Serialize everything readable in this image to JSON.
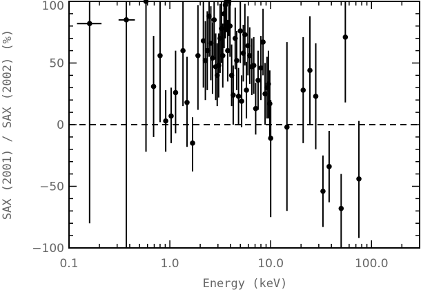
{
  "chart_data": {
    "type": "scatter",
    "title": "",
    "xlabel": "Energy (keV)",
    "ylabel": "SAX (2001) / SAX (2002) (%)",
    "x_scale": "log",
    "xlim": [
      0.1,
      300
    ],
    "ylim": [
      -100,
      100
    ],
    "x_ticks": [
      "0.1",
      "1.0",
      "10.0",
      "100.0"
    ],
    "y_ticks": [
      "−100",
      "−50",
      "0",
      "50",
      "100"
    ],
    "reference_line": {
      "y": 0,
      "style": "dashed"
    },
    "grid": false,
    "legend": "none",
    "marker_color": "#000000",
    "points": [
      {
        "x": 0.16,
        "y": 82,
        "ylo": -80,
        "yhi": 100,
        "xlo": 0.12,
        "xhi": 0.21
      },
      {
        "x": 0.37,
        "y": 85,
        "ylo": -100,
        "yhi": 100,
        "xlo": 0.31,
        "xhi": 0.45
      },
      {
        "x": 0.58,
        "y": 100,
        "ylo": -22,
        "yhi": 100
      },
      {
        "x": 0.69,
        "y": 31,
        "ylo": -10,
        "yhi": 72
      },
      {
        "x": 0.8,
        "y": 56,
        "ylo": 2,
        "yhi": 100
      },
      {
        "x": 0.91,
        "y": 3,
        "ylo": -22,
        "yhi": 28
      },
      {
        "x": 1.03,
        "y": 7,
        "ylo": -15,
        "yhi": 30
      },
      {
        "x": 1.14,
        "y": 26,
        "ylo": -7,
        "yhi": 60
      },
      {
        "x": 1.35,
        "y": 60,
        "ylo": 15,
        "yhi": 100
      },
      {
        "x": 1.48,
        "y": 18,
        "ylo": -18,
        "yhi": 55
      },
      {
        "x": 1.68,
        "y": -15,
        "ylo": -38,
        "yhi": 6
      },
      {
        "x": 1.9,
        "y": 56,
        "ylo": 12,
        "yhi": 97
      },
      {
        "x": 2.15,
        "y": 68,
        "ylo": 30,
        "yhi": 100
      },
      {
        "x": 2.25,
        "y": 52,
        "ylo": 20,
        "yhi": 84
      },
      {
        "x": 2.35,
        "y": 60,
        "ylo": 28,
        "yhi": 92
      },
      {
        "x": 2.45,
        "y": 88,
        "ylo": 55,
        "yhi": 100
      },
      {
        "x": 2.55,
        "y": 66,
        "ylo": 36,
        "yhi": 96
      },
      {
        "x": 2.65,
        "y": 54,
        "ylo": 25,
        "yhi": 83
      },
      {
        "x": 2.75,
        "y": 85,
        "ylo": 55,
        "yhi": 100
      },
      {
        "x": 2.85,
        "y": 47,
        "ylo": 20,
        "yhi": 74
      },
      {
        "x": 2.95,
        "y": 40,
        "ylo": 15,
        "yhi": 66
      },
      {
        "x": 3.05,
        "y": 48,
        "ylo": 22,
        "yhi": 74
      },
      {
        "x": 3.15,
        "y": 70,
        "ylo": 42,
        "yhi": 98
      },
      {
        "x": 3.25,
        "y": 78,
        "ylo": 50,
        "yhi": 100
      },
      {
        "x": 3.35,
        "y": 56,
        "ylo": 30,
        "yhi": 82
      },
      {
        "x": 3.45,
        "y": 90,
        "ylo": 62,
        "yhi": 100
      },
      {
        "x": 3.55,
        "y": 97,
        "ylo": 70,
        "yhi": 100
      },
      {
        "x": 3.65,
        "y": 100,
        "ylo": 75,
        "yhi": 100
      },
      {
        "x": 3.75,
        "y": 60,
        "ylo": 35,
        "yhi": 85
      },
      {
        "x": 3.85,
        "y": 100,
        "ylo": 72,
        "yhi": 100
      },
      {
        "x": 3.95,
        "y": 80,
        "ylo": 55,
        "yhi": 100
      },
      {
        "x": 4.1,
        "y": 40,
        "ylo": 15,
        "yhi": 65
      },
      {
        "x": 4.25,
        "y": 24,
        "ylo": 0,
        "yhi": 48
      },
      {
        "x": 4.45,
        "y": 70,
        "ylo": 45,
        "yhi": 95
      },
      {
        "x": 4.6,
        "y": 52,
        "ylo": 28,
        "yhi": 76
      },
      {
        "x": 4.8,
        "y": 23,
        "ylo": 0,
        "yhi": 46
      },
      {
        "x": 5.0,
        "y": 76,
        "ylo": 50,
        "yhi": 100
      },
      {
        "x": 5.15,
        "y": 19,
        "ylo": -2,
        "yhi": 40
      },
      {
        "x": 5.35,
        "y": 58,
        "ylo": 35,
        "yhi": 81
      },
      {
        "x": 5.55,
        "y": 73,
        "ylo": 48,
        "yhi": 98
      },
      {
        "x": 5.75,
        "y": 28,
        "ylo": 5,
        "yhi": 51
      },
      {
        "x": 5.95,
        "y": 64,
        "ylo": 40,
        "yhi": 88
      },
      {
        "x": 6.2,
        "y": 56,
        "ylo": 33,
        "yhi": 79
      },
      {
        "x": 6.5,
        "y": 47,
        "ylo": 24,
        "yhi": 70
      },
      {
        "x": 6.8,
        "y": 48,
        "ylo": 25,
        "yhi": 71
      },
      {
        "x": 7.1,
        "y": 13,
        "ylo": -8,
        "yhi": 34
      },
      {
        "x": 7.5,
        "y": 36,
        "ylo": 12,
        "yhi": 60
      },
      {
        "x": 8.0,
        "y": 46,
        "ylo": 20,
        "yhi": 72
      },
      {
        "x": 8.4,
        "y": 67,
        "ylo": 40,
        "yhi": 94
      },
      {
        "x": 8.8,
        "y": 25,
        "ylo": 0,
        "yhi": 50
      },
      {
        "x": 9.2,
        "y": 30,
        "ylo": 5,
        "yhi": 55
      },
      {
        "x": 9.5,
        "y": 33,
        "ylo": 5,
        "yhi": 60
      },
      {
        "x": 9.8,
        "y": 17,
        "ylo": -10,
        "yhi": 44
      },
      {
        "x": 10.0,
        "y": -11,
        "ylo": -75,
        "yhi": 20
      },
      {
        "x": 14.5,
        "y": -2,
        "ylo": -70,
        "yhi": 67
      },
      {
        "x": 21.0,
        "y": 28,
        "ylo": -15,
        "yhi": 71
      },
      {
        "x": 24.5,
        "y": 44,
        "ylo": 0,
        "yhi": 88
      },
      {
        "x": 28.0,
        "y": 23,
        "ylo": -20,
        "yhi": 66
      },
      {
        "x": 33.0,
        "y": -54,
        "ylo": -83,
        "yhi": -25
      },
      {
        "x": 38.0,
        "y": -34,
        "ylo": -63,
        "yhi": -5
      },
      {
        "x": 50.0,
        "y": -68,
        "ylo": -100,
        "yhi": -40
      },
      {
        "x": 55.0,
        "y": 71,
        "ylo": 18,
        "yhi": 100
      },
      {
        "x": 75.0,
        "y": -44,
        "ylo": -92,
        "yhi": 3
      }
    ]
  }
}
